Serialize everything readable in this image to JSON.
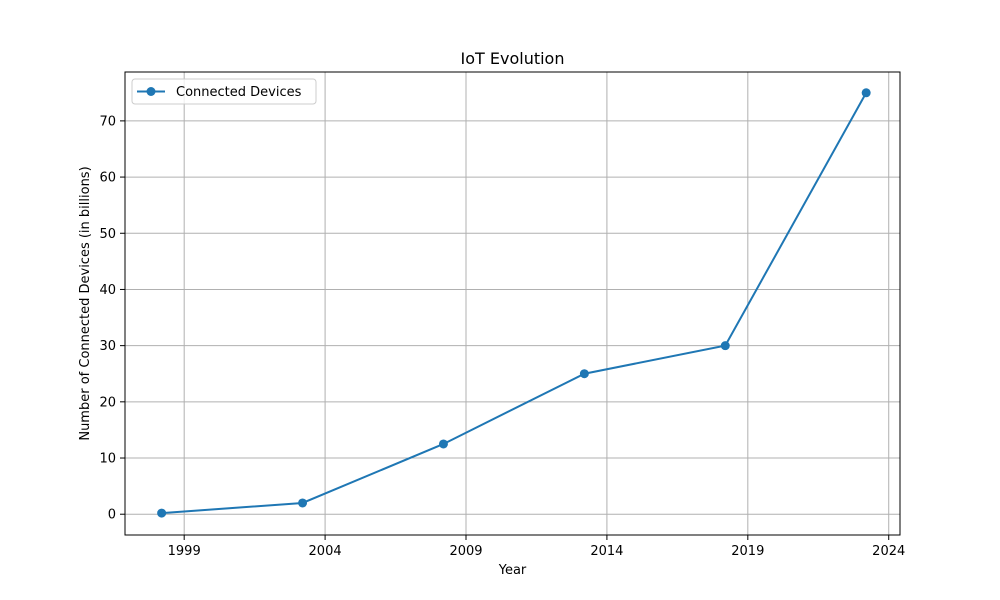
{
  "chart_data": {
    "type": "line",
    "title": "IoT Evolution",
    "xlabel": "Year",
    "ylabel": "Number of Connected Devices (in billions)",
    "x_ticks": [
      1999,
      2004,
      2009,
      2014,
      2019,
      2024
    ],
    "y_ticks": [
      0,
      10,
      20,
      30,
      40,
      50,
      60,
      70
    ],
    "xlim": [
      1996.9,
      2024.4
    ],
    "ylim": [
      -3.7,
      78.7
    ],
    "grid": true,
    "legend_position": "upper-left",
    "series": [
      {
        "name": "Connected Devices",
        "color": "#1f77b4",
        "marker": "circle",
        "x": [
          1998.2,
          2003.2,
          2008.2,
          2013.2,
          2018.2,
          2023.2
        ],
        "y": [
          0.2,
          2,
          12.5,
          25,
          30,
          75
        ]
      }
    ]
  }
}
